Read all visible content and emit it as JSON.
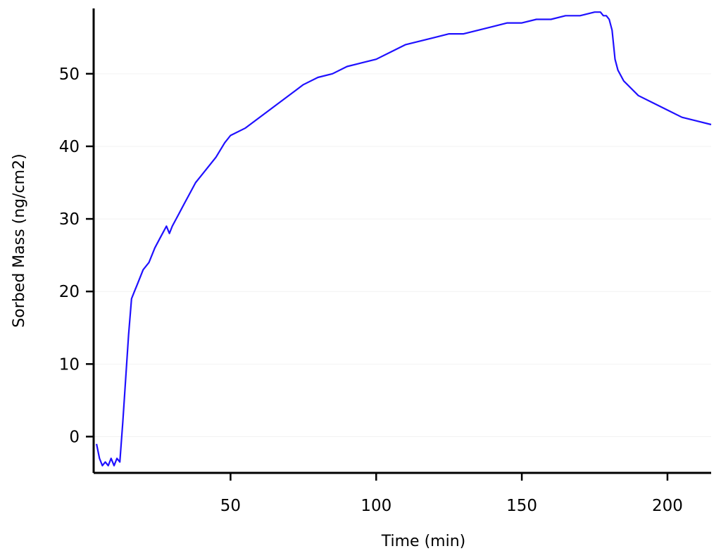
{
  "chart_data": {
    "type": "line",
    "xlabel": "Time (min)",
    "ylabel": "Sorbed Mass (ng/cm2)",
    "xlim": [
      3,
      215
    ],
    "ylim": [
      -5,
      59
    ],
    "x_ticks": [
      50,
      100,
      150,
      200
    ],
    "y_ticks": [
      0,
      10,
      20,
      30,
      40,
      50
    ],
    "grid": true,
    "line_color": "#1f10ff",
    "series": [
      {
        "x": [
          4,
          5,
          6,
          7,
          8,
          9,
          10,
          11,
          12,
          13,
          14,
          15,
          16,
          17,
          18,
          20,
          22,
          24,
          26,
          28,
          29,
          30,
          32,
          34,
          36,
          38,
          40,
          42,
          45,
          48,
          50,
          55,
          60,
          65,
          70,
          75,
          80,
          85,
          90,
          95,
          100,
          105,
          110,
          115,
          120,
          125,
          130,
          135,
          140,
          145,
          150,
          155,
          160,
          165,
          170,
          175,
          177,
          178,
          179,
          180,
          181,
          182,
          183,
          185,
          190,
          195,
          200,
          205,
          210,
          215
        ],
        "values": [
          -1,
          -3,
          -4,
          -3.5,
          -4,
          -3,
          -4,
          -3,
          -3.5,
          2,
          8,
          14,
          19,
          20,
          21,
          23,
          24,
          26,
          27.5,
          29,
          28,
          29,
          30.5,
          32,
          33.5,
          35,
          36,
          37,
          38.5,
          40.5,
          41.5,
          42.5,
          44,
          45.5,
          47,
          48.5,
          49.5,
          50,
          51,
          51.5,
          52,
          53,
          54,
          54.5,
          55,
          55.5,
          55.5,
          56,
          56.5,
          57,
          57,
          57.5,
          57.5,
          58,
          58,
          58.5,
          58.5,
          58,
          58,
          57.5,
          56,
          52,
          50.5,
          49,
          47,
          46,
          45,
          44,
          43.5,
          43
        ]
      }
    ]
  }
}
